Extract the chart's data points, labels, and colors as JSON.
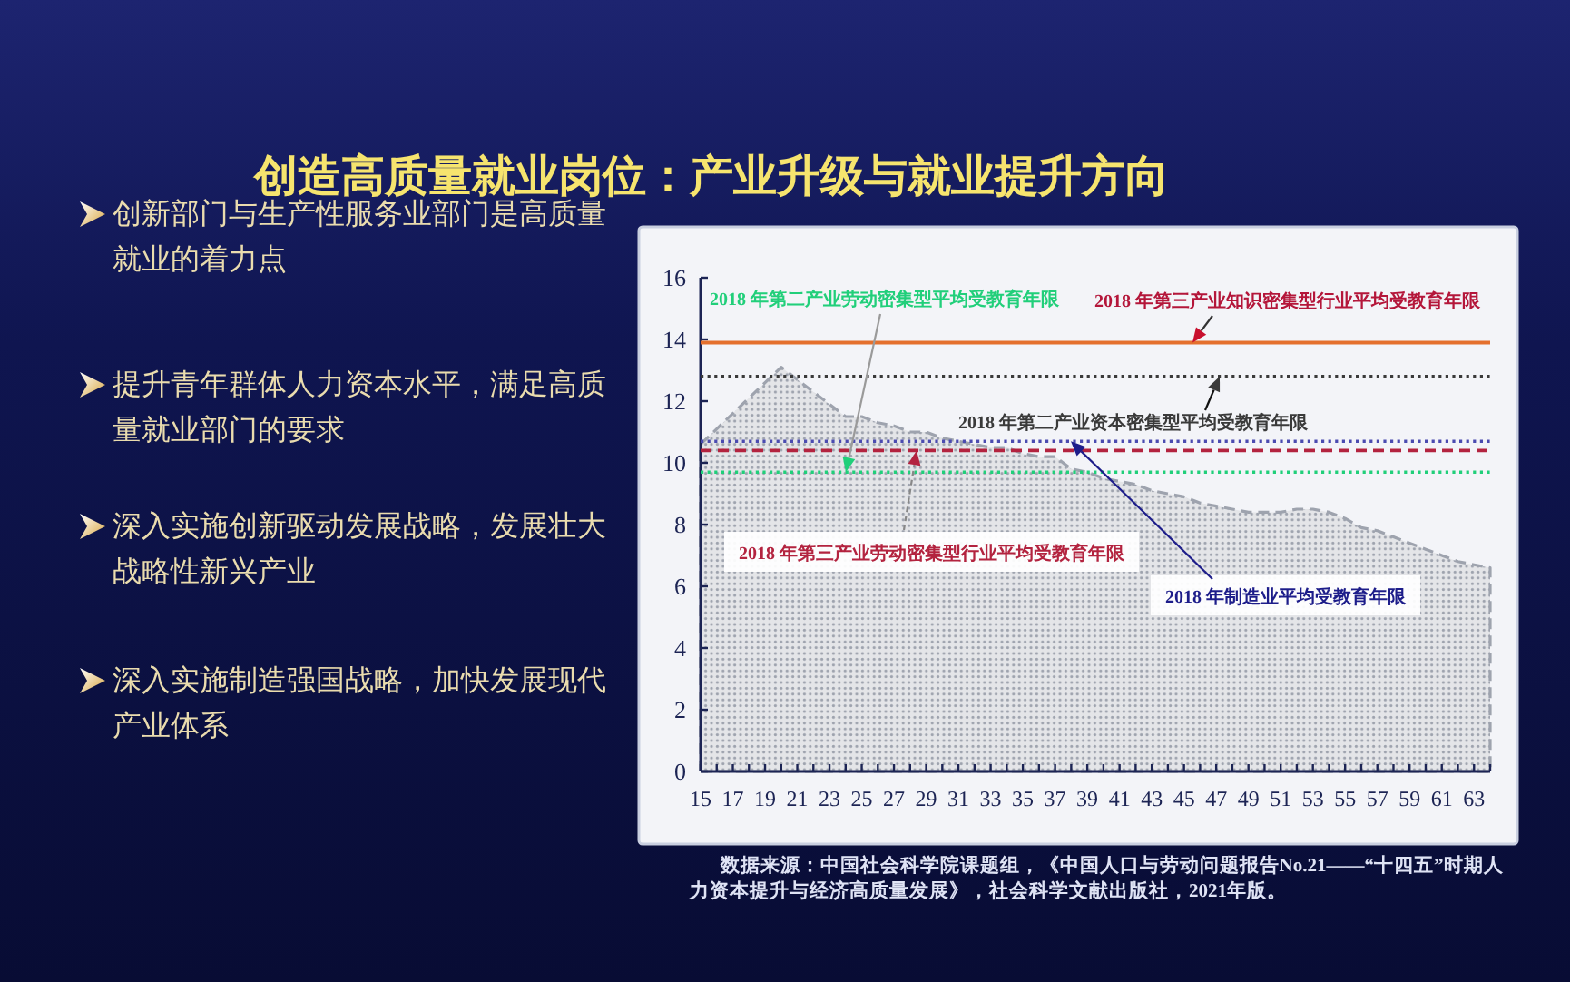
{
  "chart_data": {
    "type": "area",
    "title": "创造高质量就业岗位：产业升级与就业提升方向",
    "annotations": [
      "创新部门与生产性服务业部门是高质量就业的着力点",
      "提升青年群体人力资本水平，满足高质量就业部门的要求",
      "深入实施创新驱动发展战略，发展壮大战略性新兴产业",
      "深入实施制造强国战略，加快发展现代产业体系",
      "数据来源：中国社会科学院课题组，《中国人口与劳动问题报告No.21——“十四五”时期人力资本提升与经济高质量发展》，社会科学文献出版社，2021年版。"
    ],
    "x": [
      15,
      16,
      17,
      18,
      19,
      20,
      21,
      22,
      23,
      24,
      25,
      26,
      27,
      28,
      29,
      30,
      31,
      32,
      33,
      34,
      35,
      36,
      37,
      38,
      39,
      40,
      41,
      42,
      43,
      44,
      45,
      46,
      47,
      48,
      49,
      50,
      51,
      52,
      53,
      54,
      55,
      56,
      57,
      58,
      59,
      60,
      61,
      62,
      63,
      64
    ],
    "series": [
      {
        "color": "#9ea3ae",
        "line_style": "dashed",
        "values": [
          10.6,
          11.1,
          11.6,
          12.1,
          12.6,
          13.1,
          12.7,
          12.3,
          11.9,
          11.5,
          11.5,
          11.3,
          11.2,
          11.0,
          11.0,
          10.8,
          10.7,
          10.6,
          10.5,
          10.5,
          10.3,
          10.2,
          10.2,
          9.8,
          9.7,
          9.5,
          9.4,
          9.3,
          9.1,
          9.0,
          8.9,
          8.7,
          8.6,
          8.5,
          8.4,
          8.4,
          8.4,
          8.5,
          8.5,
          8.4,
          8.2,
          7.9,
          7.8,
          7.6,
          7.4,
          7.2,
          7.0,
          6.8,
          6.7,
          6.6
        ]
      }
    ],
    "xlim": [
      15,
      64
    ],
    "xticks": [
      15,
      {
        "value": 16,
        "label": null
      },
      17,
      {
        "value": 18,
        "label": null
      },
      19,
      {
        "value": 20,
        "label": null
      },
      21,
      {
        "value": 22,
        "label": null
      },
      23,
      {
        "value": 24,
        "label": null
      },
      25,
      {
        "value": 26,
        "label": null
      },
      27,
      {
        "value": 28,
        "label": null
      },
      29,
      {
        "value": 30,
        "label": null
      },
      31,
      {
        "value": 32,
        "label": null
      },
      33,
      {
        "value": 34,
        "label": null
      },
      35,
      {
        "value": 36,
        "label": null
      },
      37,
      {
        "value": 38,
        "label": null
      },
      39,
      {
        "value": 40,
        "label": null
      },
      41,
      {
        "value": 42,
        "label": null
      },
      43,
      {
        "value": 44,
        "label": null
      },
      45,
      {
        "value": 46,
        "label": null
      },
      47,
      {
        "value": 48,
        "label": null
      },
      49,
      {
        "value": 50,
        "label": null
      },
      51,
      {
        "value": 52,
        "label": null
      },
      53,
      {
        "value": 54,
        "label": null
      },
      55,
      {
        "value": 56,
        "label": null
      },
      57,
      {
        "value": 58,
        "label": null
      },
      59,
      {
        "value": 60,
        "label": null
      },
      61,
      {
        "value": 62,
        "label": null
      },
      63,
      {
        "value": 64,
        "label": null
      }
    ],
    "ylim": [
      0,
      16
    ],
    "yticks": [
      0,
      2,
      4,
      6,
      8,
      10,
      12,
      14,
      16
    ],
    "ref_lines": [
      {
        "axis": "y",
        "value": 13.9,
        "label": "2018 年第三产业知识密集型行业平均受教育年限",
        "color": "#e4702e",
        "line_style": "solid"
      },
      {
        "axis": "y",
        "value": 12.8,
        "label": "2018 年第二产业资本密集型平均受教育年限",
        "color": "#3a3a3a",
        "line_style": "dotted"
      },
      {
        "axis": "y",
        "value": 10.7,
        "label": "2018 年制造业平均受教育年限",
        "color": "#4b4bb0",
        "line_style": "dotted"
      },
      {
        "axis": "y",
        "value": 10.4,
        "label": "2018 年第三产业劳动密集型行业平均受教育年限",
        "color": "#b3233f",
        "line_style": "dashed"
      },
      {
        "axis": "y",
        "value": 9.7,
        "label": "2018 年第二产业劳动密集型平均受教育年限",
        "color": "#21cf7a",
        "line_style": "dotted"
      }
    ],
    "grid": false
  }
}
